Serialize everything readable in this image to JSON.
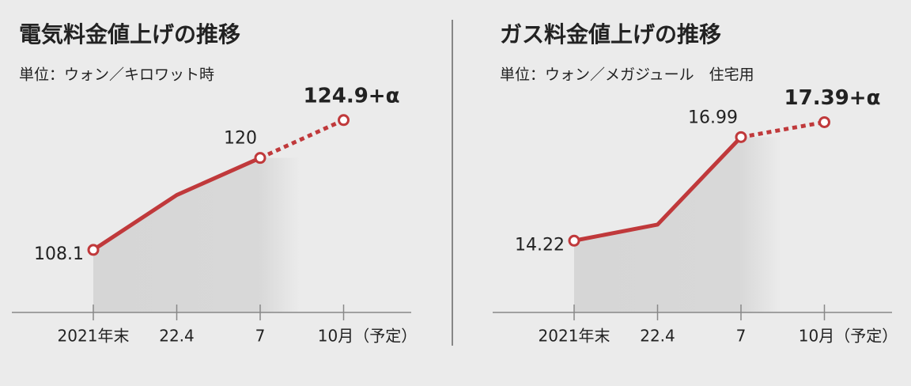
{
  "chart_data": [
    {
      "type": "line",
      "title": "電気料金値上げの推移",
      "subtitle": "単位：ウォン／キロワット時",
      "categories": [
        "2021年末",
        "22.4",
        "7",
        "10月（予定）"
      ],
      "values": [
        108.1,
        115.2,
        120,
        124.9
      ],
      "value_labels": [
        "108.1",
        null,
        "120",
        "124.9+α"
      ],
      "dashed": [
        false,
        false,
        false,
        true
      ],
      "color": "#c0393b",
      "ylim": [
        100,
        130
      ]
    },
    {
      "type": "line",
      "title": "ガス料金値上げの推移",
      "subtitle": "単位：ウォン／メガジュール　住宅用",
      "categories": [
        "2021年末",
        "22.4",
        "7",
        "10月（予定）"
      ],
      "values": [
        14.22,
        14.65,
        16.99,
        17.39
      ],
      "value_labels": [
        "14.22",
        null,
        "16.99",
        "17.39+α"
      ],
      "dashed": [
        false,
        false,
        false,
        true
      ],
      "color": "#c0393b",
      "ylim": [
        12.3,
        18.5
      ]
    }
  ]
}
